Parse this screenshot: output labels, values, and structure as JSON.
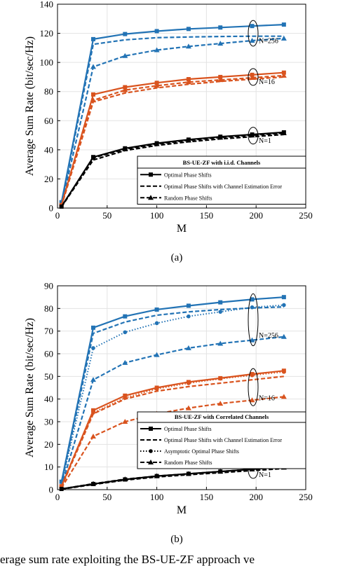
{
  "colors": {
    "blue": "#2273b5",
    "orange": "#d9531e",
    "black": "#000000",
    "grid": "#e3e3e3"
  },
  "chart_data": [
    {
      "type": "line",
      "sublabel": "(a)",
      "xlabel": "M",
      "ylabel": "Average Sum Rate (bit/sec/Hz)",
      "xlim": [
        0,
        250
      ],
      "ylim": [
        0,
        140
      ],
      "xticks": [
        "0",
        "50",
        "100",
        "150",
        "200",
        "250"
      ],
      "yticks": [
        "0",
        "20",
        "40",
        "60",
        "80",
        "100",
        "120",
        "140"
      ],
      "grid": true,
      "legend": {
        "placement": "lower-right",
        "title": "BS-UE-ZF with i.i.d. Channels",
        "entries": [
          "Optimal Phase Shifts",
          "Optimal Phase Shifts with Channel Estimation Error",
          "Random Phase Shifts"
        ]
      },
      "annotations": [
        {
          "text": "N=256",
          "at": [
            203,
            117
          ]
        },
        {
          "text": "N=16",
          "at": [
            203,
            91
          ]
        },
        {
          "text": "N=1",
          "at": [
            203,
            51
          ]
        }
      ],
      "groups": [
        {
          "color": "blue",
          "label": "N=256",
          "x": [
            4,
            36,
            68,
            100,
            132,
            164,
            196,
            228
          ],
          "optimal": [
            4,
            116,
            119.5,
            121.5,
            123,
            124,
            125,
            126
          ],
          "estimation": [
            3,
            112.5,
            115.5,
            117,
            117.5,
            117.8,
            118,
            118
          ],
          "random": [
            2,
            97,
            104.5,
            108.5,
            111,
            113,
            115,
            116.5
          ]
        },
        {
          "color": "orange",
          "label": "N=16",
          "x": [
            4,
            36,
            68,
            100,
            132,
            164,
            196,
            228
          ],
          "optimal": [
            2,
            78,
            83,
            86,
            88.5,
            90,
            91.5,
            93
          ],
          "estimation": [
            1.5,
            73,
            79,
            82.5,
            85,
            87,
            88.5,
            90
          ],
          "random": [
            1.5,
            74,
            81,
            84,
            86.5,
            88,
            89.5,
            91
          ]
        },
        {
          "color": "black",
          "label": "N=1",
          "x": [
            4,
            36,
            68,
            100,
            132,
            164,
            196,
            228
          ],
          "optimal": [
            1,
            35,
            41,
            44.5,
            47,
            49,
            50.5,
            52
          ],
          "estimation": [
            0.8,
            33,
            39.5,
            43,
            45.5,
            47.5,
            49,
            50.5
          ],
          "random": [
            1,
            34.5,
            40.5,
            44,
            46.5,
            48.5,
            50,
            51.5
          ]
        }
      ]
    },
    {
      "type": "line",
      "sublabel": "(b)",
      "xlabel": "M",
      "ylabel": "Average Sum Rate (bit/sec/Hz)",
      "xlim": [
        0,
        250
      ],
      "ylim": [
        0,
        90
      ],
      "xticks": [
        "0",
        "50",
        "100",
        "150",
        "200",
        "250"
      ],
      "yticks": [
        "0",
        "10",
        "20",
        "30",
        "40",
        "50",
        "60",
        "70",
        "80",
        "90"
      ],
      "grid": true,
      "legend": {
        "placement": "lower-right",
        "title": "BS-UE-ZF with Correlated Channels",
        "entries": [
          "Optimal Phase Shifts",
          "Optimal Phase Shifts with Channel Estimation Error",
          "Asymptotic Optimal Phase Shifts",
          "Random Phase Shifts"
        ]
      },
      "annotations": [
        {
          "text": "N=256",
          "at": [
            203,
            76
          ]
        },
        {
          "text": "N=16",
          "at": [
            203,
            47
          ]
        },
        {
          "text": "N=1",
          "at": [
            203,
            8
          ]
        }
      ],
      "groups": [
        {
          "color": "blue",
          "label": "N=256",
          "x": [
            4,
            36,
            68,
            100,
            132,
            164,
            196,
            228
          ],
          "optimal": [
            3.5,
            71.5,
            76.5,
            79.5,
            81.2,
            82.7,
            84,
            85
          ],
          "estimation": [
            2.5,
            69,
            74,
            77,
            78.5,
            79.5,
            80.2,
            80.7
          ],
          "asymptotic": [
            2.5,
            62.5,
            69.5,
            73.5,
            76.5,
            78.5,
            80.5,
            81.5
          ],
          "random": [
            1.5,
            48.5,
            56,
            59.5,
            62.5,
            64.5,
            66,
            67.5
          ]
        },
        {
          "color": "orange",
          "label": "N=16",
          "x": [
            4,
            36,
            68,
            100,
            132,
            164,
            196,
            228
          ],
          "optimal": [
            1.5,
            35,
            41.5,
            45,
            47.5,
            49.2,
            51,
            52.5
          ],
          "estimation": [
            1.2,
            33.5,
            40,
            43.5,
            45.5,
            47,
            48.5,
            50
          ],
          "asymptotic": [
            1.5,
            34,
            40.5,
            44.5,
            47,
            49,
            50.5,
            52
          ],
          "random": [
            0.8,
            23.5,
            30,
            33.5,
            36,
            38,
            39.5,
            41
          ]
        },
        {
          "color": "black",
          "label": "N=1",
          "x": [
            4,
            36,
            68,
            100,
            132,
            164,
            196,
            228
          ],
          "optimal": [
            0.3,
            2.5,
            4.5,
            6,
            7,
            8,
            9,
            10
          ],
          "estimation": [
            0.2,
            2.3,
            4.2,
            5.6,
            6.6,
            7.5,
            8.4,
            9.3
          ],
          "asymptotic": [
            0.3,
            2.5,
            4.5,
            6,
            7,
            8,
            9,
            9.8
          ],
          "random": [
            0.3,
            2.6,
            4.6,
            6,
            7,
            8,
            9,
            9.8
          ]
        }
      ]
    }
  ],
  "caption": "erage sum rate exploiting the BS-UE-ZF approach ve"
}
